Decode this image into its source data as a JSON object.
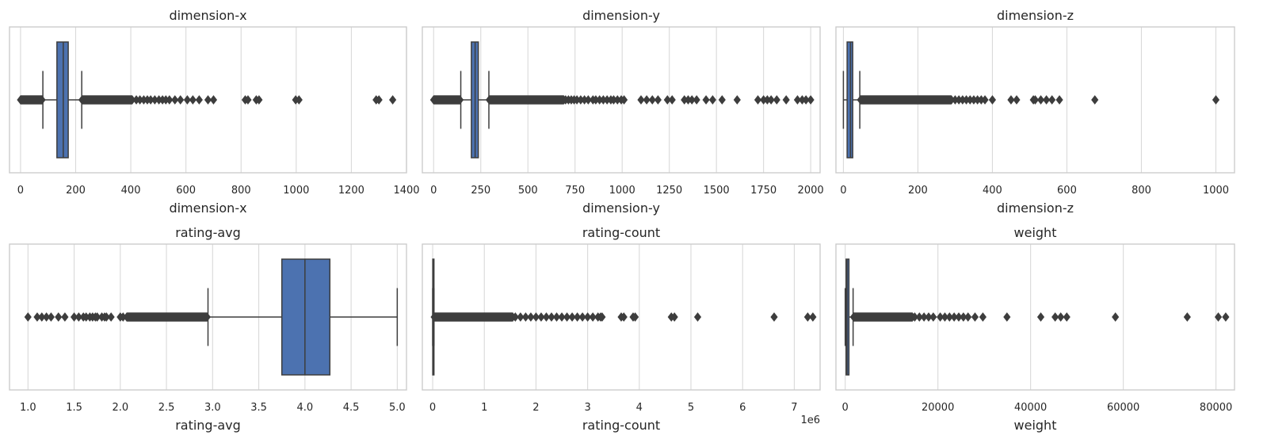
{
  "chart_data": [
    {
      "type": "boxplot",
      "title": "dimension-x",
      "xlabel": "dimension-x",
      "xlim": [
        -40,
        1400
      ],
      "ticks": [
        0,
        200,
        400,
        600,
        800,
        1000,
        1200,
        1400
      ],
      "tick_labels": [
        "0",
        "200",
        "400",
        "600",
        "800",
        "1000",
        "1200",
        "1400"
      ],
      "offset_label": "",
      "grid": true,
      "box": {
        "whisker_low": 81,
        "q1": 132,
        "median": 155,
        "q3": 173,
        "whisker_high": 222
      },
      "outliers": {
        "low_range": [
          0,
          78
        ],
        "high_range": [
          223,
          405
        ],
        "points": [
          420,
          433,
          447,
          460,
          472,
          487,
          502,
          515,
          527,
          540,
          560,
          580,
          605,
          625,
          648,
          680,
          700,
          815,
          825,
          855,
          865,
          998,
          1010,
          1290,
          1300,
          1350
        ]
      },
      "box_color": "#4c72b0"
    },
    {
      "type": "boxplot",
      "title": "dimension-y",
      "xlabel": "dimension-y",
      "xlim": [
        -60,
        2050
      ],
      "ticks": [
        0,
        250,
        500,
        750,
        1000,
        1250,
        1500,
        1750,
        2000
      ],
      "tick_labels": [
        "0",
        "250",
        "500",
        "750",
        "1000",
        "1250",
        "1500",
        "1750",
        "2000"
      ],
      "offset_label": "",
      "grid": true,
      "box": {
        "whisker_low": 144,
        "q1": 200,
        "median": 220,
        "q3": 237,
        "whisker_high": 293
      },
      "outliers": {
        "low_range": [
          0,
          140
        ],
        "high_range": [
          295,
          690
        ],
        "points": [
          700,
          715,
          730,
          745,
          760,
          780,
          800,
          820,
          845,
          860,
          880,
          900,
          920,
          940,
          955,
          975,
          995,
          1010,
          1100,
          1130,
          1160,
          1190,
          1240,
          1265,
          1330,
          1350,
          1370,
          1395,
          1445,
          1480,
          1530,
          1610,
          1720,
          1750,
          1770,
          1790,
          1820,
          1870,
          1930,
          1955,
          1975,
          2000
        ]
      },
      "box_color": "#4c72b0"
    },
    {
      "type": "boxplot",
      "title": "dimension-z",
      "xlabel": "dimension-z",
      "xlim": [
        -20,
        1050
      ],
      "ticks": [
        0,
        200,
        400,
        600,
        800,
        1000
      ],
      "tick_labels": [
        "0",
        "200",
        "400",
        "600",
        "800",
        "1000"
      ],
      "offset_label": "",
      "grid": true,
      "box": {
        "whisker_low": 0,
        "q1": 10,
        "median": 19,
        "q3": 25,
        "whisker_high": 44
      },
      "outliers": {
        "low_range": null,
        "high_range": [
          46,
          290
        ],
        "points": [
          300,
          310,
          320,
          330,
          340,
          350,
          360,
          370,
          380,
          400,
          450,
          465,
          510,
          515,
          530,
          545,
          560,
          580,
          675,
          1000
        ]
      },
      "box_color": "#4c72b0"
    },
    {
      "type": "boxplot",
      "title": "rating-avg",
      "xlabel": "rating-avg",
      "xlim": [
        0.8,
        5.1
      ],
      "ticks": [
        1.0,
        1.5,
        2.0,
        2.5,
        3.0,
        3.5,
        4.0,
        4.5,
        5.0
      ],
      "tick_labels": [
        "1.0",
        "1.5",
        "2.0",
        "2.5",
        "3.0",
        "3.5",
        "4.0",
        "4.5",
        "5.0"
      ],
      "offset_label": "",
      "grid": true,
      "box": {
        "whisker_low": 2.95,
        "q1": 3.75,
        "median": 4.0,
        "q3": 4.27,
        "whisker_high": 5.0
      },
      "outliers": {
        "low_range": [
          2.07,
          2.94
        ],
        "high_range": null,
        "points": [
          1.0,
          1.1,
          1.15,
          1.2,
          1.25,
          1.33,
          1.4,
          1.5,
          1.55,
          1.6,
          1.63,
          1.67,
          1.7,
          1.73,
          1.75,
          1.8,
          1.83,
          1.85,
          1.9,
          2.0,
          2.03
        ]
      },
      "box_color": "#4c72b0"
    },
    {
      "type": "boxplot",
      "title": "rating-count",
      "xlabel": "rating-count",
      "xlim": [
        -200000,
        7500000
      ],
      "ticks": [
        0,
        1000000,
        2000000,
        3000000,
        4000000,
        5000000,
        6000000,
        7000000
      ],
      "tick_labels": [
        "0",
        "1",
        "2",
        "3",
        "4",
        "5",
        "6",
        "7"
      ],
      "offset_label": "1e6",
      "grid": true,
      "box": {
        "whisker_low": 0,
        "q1": 2000,
        "median": 6000,
        "q3": 12000,
        "whisker_high": 25000
      },
      "outliers": {
        "low_range": null,
        "high_range": [
          30000,
          1550000
        ],
        "points": [
          1600000,
          1700000,
          1800000,
          1900000,
          2000000,
          2100000,
          2200000,
          2300000,
          2400000,
          2500000,
          2600000,
          2700000,
          2800000,
          2900000,
          3000000,
          3100000,
          3200000,
          3250000,
          3280000,
          3650000,
          3700000,
          3880000,
          3920000,
          4620000,
          4680000,
          5130000,
          6610000,
          7260000,
          7360000
        ]
      },
      "box_color": "#4c72b0"
    },
    {
      "type": "boxplot",
      "title": "weight",
      "xlabel": "weight",
      "xlim": [
        -2000,
        84000
      ],
      "ticks": [
        0,
        20000,
        40000,
        60000,
        80000
      ],
      "tick_labels": [
        "0",
        "20000",
        "40000",
        "60000",
        "80000"
      ],
      "offset_label": "",
      "grid": true,
      "box": {
        "whisker_low": 0,
        "q1": 200,
        "median": 400,
        "q3": 800,
        "whisker_high": 1700
      },
      "outliers": {
        "low_range": null,
        "high_range": [
          1800,
          14500
        ],
        "points": [
          15000,
          16000,
          17000,
          18000,
          19000,
          20500,
          21500,
          22500,
          23500,
          24500,
          25500,
          26500,
          28000,
          29700,
          34900,
          42200,
          45300,
          46500,
          47800,
          58300,
          73800,
          80500,
          82100
        ]
      },
      "box_color": "#4c72b0"
    }
  ]
}
